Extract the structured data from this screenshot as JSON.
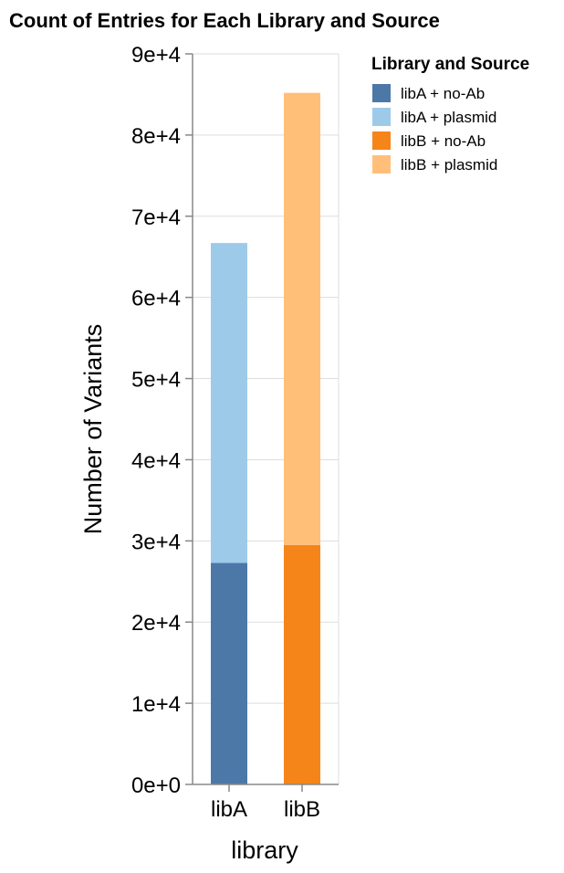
{
  "chart_data": {
    "type": "bar",
    "stacked": true,
    "title": "Count of Entries for Each Library and Source",
    "xlabel": "library",
    "ylabel": "Number of Variants",
    "categories": [
      "libA",
      "libB"
    ],
    "ylim": [
      0,
      90000
    ],
    "yticks": [
      0,
      10000,
      20000,
      30000,
      40000,
      50000,
      60000,
      70000,
      80000,
      90000
    ],
    "ytick_labels": [
      "0e+0",
      "1e+4",
      "2e+4",
      "3e+4",
      "4e+4",
      "5e+4",
      "6e+4",
      "7e+4",
      "8e+4",
      "9e+4"
    ],
    "grid": true,
    "legend": {
      "title": "Library and Source",
      "placement": "right"
    },
    "series": [
      {
        "name": "libA + no-Ab",
        "color": "#4c78a8",
        "values": [
          27300,
          0
        ]
      },
      {
        "name": "libA + plasmid",
        "color": "#9ecae9",
        "values": [
          39400,
          0
        ]
      },
      {
        "name": "libB + no-Ab",
        "color": "#f58518",
        "values": [
          0,
          29500
        ]
      },
      {
        "name": "libB + plasmid",
        "color": "#ffbf79",
        "values": [
          0,
          55700
        ]
      }
    ]
  }
}
